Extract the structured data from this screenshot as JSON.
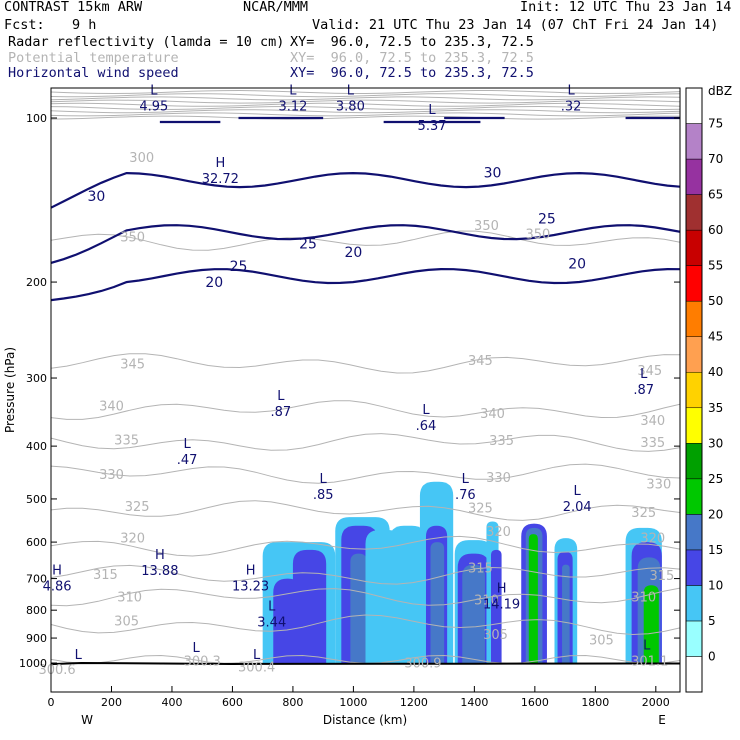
{
  "header": {
    "model": "CONTRAST 15km ARW",
    "org": "NCAR/MMM",
    "init": "Init: 12 UTC Thu 23 Jan 14",
    "fcst_label": "Fcst:",
    "fcst_value": "9 h",
    "valid": "Valid: 21 UTC Thu 23 Jan 14 (07 ChT Fri 24 Jan 14)",
    "fields": [
      {
        "name": "Radar reflectivity (lamda = 10 cm)",
        "xy": "XY=  96.0, 72.5 to 235.3, 72.5",
        "color": "#000000"
      },
      {
        "name": "Potential temperature",
        "xy": "XY=  96.0, 72.5 to 235.3, 72.5",
        "color": "#b4b4b4"
      },
      {
        "name": "Horizontal wind speed",
        "xy": "XY=  96.0, 72.5 to 235.3, 72.5",
        "color": "#101070"
      }
    ]
  },
  "chart_data": {
    "type": "heatmap",
    "xlabel": "Distance (km)",
    "ylabel": "Pressure (hPa)",
    "xlim": [
      0,
      2080
    ],
    "ylim": [
      1050,
      60
    ],
    "x_ticks": [
      "0",
      "200",
      "400",
      "600",
      "800",
      "1000",
      "1200",
      "1400",
      "1600",
      "1800",
      "2000"
    ],
    "y_ticks": [
      "100",
      "200",
      "300",
      "400",
      "500",
      "600",
      "700",
      "800",
      "900",
      "1000"
    ],
    "x_end_labels": {
      "left": "W",
      "right": "E"
    },
    "colorbar": {
      "unit": "dBZ",
      "levels": [
        "0",
        "5",
        "10",
        "15",
        "20",
        "25",
        "30",
        "35",
        "40",
        "45",
        "50",
        "55",
        "60",
        "65",
        "70",
        "75"
      ],
      "colors": [
        "#ffffff",
        "#99ffff",
        "#46c6f5",
        "#4646e6",
        "#4678c8",
        "#00c800",
        "#00a000",
        "#ffff00",
        "#ffd200",
        "#ffa050",
        "#ff7d00",
        "#ff0000",
        "#c80000",
        "#a03030",
        "#9632a0",
        "#b482c8",
        "#ffffff"
      ]
    },
    "theta_contours": [
      {
        "value": "305",
        "pressure": 850
      },
      {
        "value": "310",
        "pressure": 755
      },
      {
        "value": "315",
        "pressure": 690
      },
      {
        "value": "320",
        "pressure": 610
      },
      {
        "value": "325",
        "pressure": 525
      },
      {
        "value": "330",
        "pressure": 450
      },
      {
        "value": "335",
        "pressure": 393
      },
      {
        "value": "340",
        "pressure": 343
      },
      {
        "value": "345",
        "pressure": 282
      },
      {
        "value": "350",
        "pressure": 168
      }
    ],
    "theta_labels": [
      {
        "text": "305",
        "x": 1470,
        "p": 885
      },
      {
        "text": "305",
        "x": 1820,
        "p": 905
      },
      {
        "text": "305",
        "x": 250,
        "p": 835
      },
      {
        "text": "310",
        "x": 260,
        "p": 755
      },
      {
        "text": "310",
        "x": 1440,
        "p": 765
      },
      {
        "text": "310",
        "x": 1960,
        "p": 755
      },
      {
        "text": "315",
        "x": 180,
        "p": 687
      },
      {
        "text": "315",
        "x": 1420,
        "p": 668
      },
      {
        "text": "315",
        "x": 2020,
        "p": 690
      },
      {
        "text": "320",
        "x": 270,
        "p": 588
      },
      {
        "text": "320",
        "x": 1480,
        "p": 573
      },
      {
        "text": "320",
        "x": 1990,
        "p": 588
      },
      {
        "text": "325",
        "x": 285,
        "p": 515
      },
      {
        "text": "325",
        "x": 1420,
        "p": 518
      },
      {
        "text": "325",
        "x": 1960,
        "p": 528
      },
      {
        "text": "330",
        "x": 200,
        "p": 450
      },
      {
        "text": "330",
        "x": 1480,
        "p": 456
      },
      {
        "text": "330",
        "x": 2010,
        "p": 468
      },
      {
        "text": "335",
        "x": 250,
        "p": 389
      },
      {
        "text": "335",
        "x": 1490,
        "p": 390
      },
      {
        "text": "335",
        "x": 1990,
        "p": 393
      },
      {
        "text": "340",
        "x": 200,
        "p": 337
      },
      {
        "text": "340",
        "x": 1460,
        "p": 348
      },
      {
        "text": "340",
        "x": 1990,
        "p": 358
      },
      {
        "text": "345",
        "x": 270,
        "p": 282
      },
      {
        "text": "345",
        "x": 1420,
        "p": 278
      },
      {
        "text": "345",
        "x": 1980,
        "p": 290
      },
      {
        "text": "350",
        "x": 270,
        "p": 165
      },
      {
        "text": "350",
        "x": 1440,
        "p": 157
      },
      {
        "text": "350",
        "x": 1610,
        "p": 163
      },
      {
        "text": "300",
        "x": 300,
        "p": 118
      },
      {
        "text": "300.3",
        "x": 500,
        "p": 990
      },
      {
        "text": "300.6",
        "x": 20,
        "p": 1025
      },
      {
        "text": "300.4",
        "x": 680,
        "p": 1015
      },
      {
        "text": "300.9",
        "x": 1230,
        "p": 998
      },
      {
        "text": "301.1",
        "x": 1980,
        "p": 990
      }
    ],
    "wind_contours": [
      {
        "value": "20",
        "pressure": 195
      },
      {
        "value": "25",
        "pressure": 162
      },
      {
        "value": "30",
        "pressure": 130
      }
    ],
    "wind_labels": [
      {
        "text": "30",
        "x": 150,
        "p": 139
      },
      {
        "text": "30",
        "x": 1460,
        "p": 126
      },
      {
        "text": "25",
        "x": 850,
        "p": 170
      },
      {
        "text": "25",
        "x": 1640,
        "p": 153
      },
      {
        "text": "25",
        "x": 620,
        "p": 187
      },
      {
        "text": "20",
        "x": 540,
        "p": 200
      },
      {
        "text": "20",
        "x": 1000,
        "p": 176
      },
      {
        "text": "20",
        "x": 1740,
        "p": 185
      }
    ],
    "extrema": [
      {
        "kind": "L",
        "value": "4.95",
        "x": 340,
        "p": 92
      },
      {
        "kind": "L",
        "value": "3.12",
        "x": 800,
        "p": 92
      },
      {
        "kind": "L",
        "value": "3.80",
        "x": 990,
        "p": 92
      },
      {
        "kind": "L",
        "value": "5.37",
        "x": 1260,
        "p": 100
      },
      {
        "kind": "L",
        "value": ".32",
        "x": 1720,
        "p": 92
      },
      {
        "kind": "H",
        "value": "32.72",
        "x": 560,
        "p": 125
      },
      {
        "kind": "L",
        "value": ".87",
        "x": 760,
        "p": 335
      },
      {
        "kind": "L",
        "value": ".64",
        "x": 1240,
        "p": 355
      },
      {
        "kind": "L",
        "value": ".87",
        "x": 1960,
        "p": 305
      },
      {
        "kind": "L",
        "value": ".47",
        "x": 450,
        "p": 410
      },
      {
        "kind": "L",
        "value": ".85",
        "x": 900,
        "p": 475
      },
      {
        "kind": "L",
        "value": ".76",
        "x": 1370,
        "p": 475
      },
      {
        "kind": "L",
        "value": "2.04",
        "x": 1740,
        "p": 500
      },
      {
        "kind": "H",
        "value": "13.88",
        "x": 360,
        "p": 655
      },
      {
        "kind": "H",
        "value": "4.86",
        "x": 20,
        "p": 700
      },
      {
        "kind": "H",
        "value": "13.23",
        "x": 660,
        "p": 700
      },
      {
        "kind": "H",
        "value": "14.19",
        "x": 1490,
        "p": 755
      },
      {
        "kind": "L",
        "value": "3.44",
        "x": 730,
        "p": 815
      },
      {
        "kind": "L",
        "value": "",
        "x": 90,
        "p": 1000
      },
      {
        "kind": "L",
        "value": "",
        "x": 480,
        "p": 970
      },
      {
        "kind": "L",
        "value": "",
        "x": 680,
        "p": 1000
      },
      {
        "kind": "L",
        "value": "",
        "x": 1970,
        "p": 960
      }
    ],
    "reflectivity_columns": [
      {
        "x": [
          700,
          940
        ],
        "top": 600,
        "level": 5
      },
      {
        "x": [
          735,
          830
        ],
        "top": 700,
        "level": 10
      },
      {
        "x": [
          800,
          910
        ],
        "top": 620,
        "level": 10
      },
      {
        "x": [
          940,
          1120
        ],
        "top": 540,
        "level": 5
      },
      {
        "x": [
          960,
          1080
        ],
        "top": 560,
        "level": 10
      },
      {
        "x": [
          990,
          1045
        ],
        "top": 630,
        "level": 15
      },
      {
        "x": [
          1040,
          1160
        ],
        "top": 570,
        "level": 5
      },
      {
        "x": [
          1120,
          1240
        ],
        "top": 560,
        "level": 5
      },
      {
        "x": [
          1220,
          1330
        ],
        "top": 465,
        "level": 5
      },
      {
        "x": [
          1240,
          1310
        ],
        "top": 560,
        "level": 10
      },
      {
        "x": [
          1255,
          1300
        ],
        "top": 600,
        "level": 15
      },
      {
        "x": [
          1335,
          1460
        ],
        "top": 595,
        "level": 5
      },
      {
        "x": [
          1345,
          1450
        ],
        "top": 630,
        "level": 10
      },
      {
        "x": [
          1360,
          1435
        ],
        "top": 660,
        "level": 15
      },
      {
        "x": [
          1440,
          1480
        ],
        "top": 550,
        "level": 5
      },
      {
        "x": [
          1455,
          1490
        ],
        "top": 620,
        "level": 10
      },
      {
        "x": [
          1555,
          1640
        ],
        "top": 555,
        "level": 10
      },
      {
        "x": [
          1570,
          1625
        ],
        "top": 565,
        "level": 15
      },
      {
        "x": [
          1580,
          1610
        ],
        "top": 580,
        "level": 20
      },
      {
        "x": [
          1665,
          1740
        ],
        "top": 590,
        "level": 5
      },
      {
        "x": [
          1675,
          1725
        ],
        "top": 625,
        "level": 10
      },
      {
        "x": [
          1690,
          1715
        ],
        "top": 660,
        "level": 15
      },
      {
        "x": [
          1900,
          2020
        ],
        "top": 565,
        "level": 5
      },
      {
        "x": [
          1920,
          2020
        ],
        "top": 600,
        "level": 10
      },
      {
        "x": [
          1940,
          2015
        ],
        "top": 640,
        "level": 15
      },
      {
        "x": [
          1960,
          2010
        ],
        "top": 720,
        "level": 20
      }
    ]
  }
}
